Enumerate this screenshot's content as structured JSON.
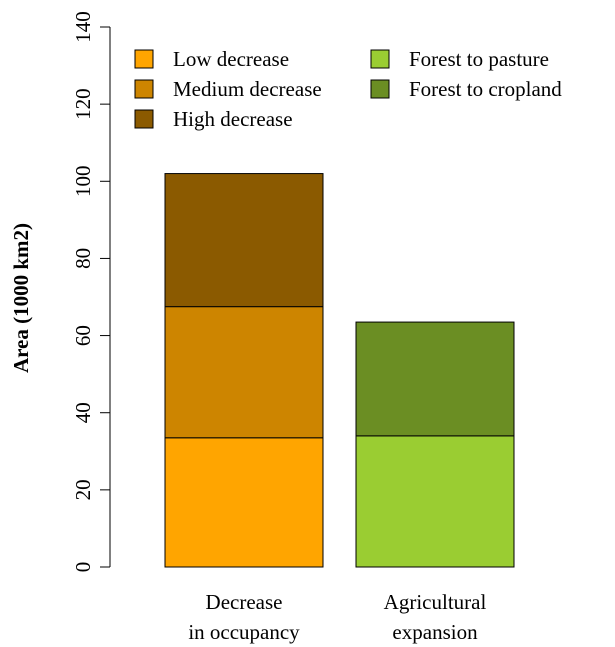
{
  "chart_data": {
    "type": "bar",
    "stacked": true,
    "ylabel": "Area (1000 km2)",
    "ylim": [
      0,
      140
    ],
    "yticks": [
      0,
      20,
      40,
      60,
      80,
      100,
      120,
      140
    ],
    "grid": false,
    "legend_position": "top",
    "bars": [
      {
        "category_lines": [
          "Decrease",
          "in occupancy"
        ],
        "segments": [
          {
            "name": "Low decrease",
            "value": 33.5,
            "color": "#FFA500"
          },
          {
            "name": "Medium decrease",
            "value": 34.0,
            "color": "#CD8500"
          },
          {
            "name": "High decrease",
            "value": 34.5,
            "color": "#8B5A00"
          }
        ]
      },
      {
        "category_lines": [
          "Agricultural",
          "expansion"
        ],
        "segments": [
          {
            "name": "Forest to pasture",
            "value": 34.0,
            "color": "#9ACD32"
          },
          {
            "name": "Forest to cropland",
            "value": 29.5,
            "color": "#6B8E23"
          }
        ]
      }
    ],
    "legend": [
      {
        "label": "Low decrease",
        "color": "#FFA500"
      },
      {
        "label": "Medium decrease",
        "color": "#CD8500"
      },
      {
        "label": "High decrease",
        "color": "#8B5A00"
      },
      {
        "label": "Forest to pasture",
        "color": "#9ACD32"
      },
      {
        "label": "Forest to cropland",
        "color": "#6B8E23"
      }
    ]
  }
}
